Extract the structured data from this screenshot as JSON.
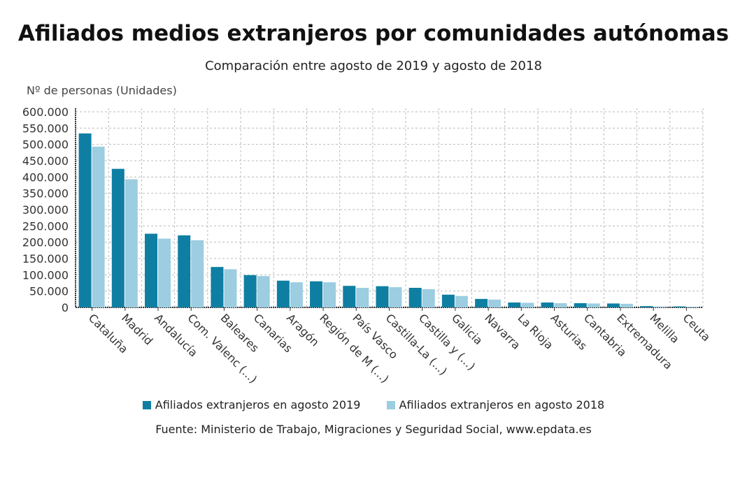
{
  "chart_data": {
    "type": "bar",
    "title": "Afiliados medios extranjeros por comunidades autónomas",
    "subtitle": "Comparación entre agosto de 2019 y agosto de 2018",
    "ylabel": "Nº de personas (Unidades)",
    "xlabel": "",
    "ylim": [
      0,
      600000
    ],
    "yticks": [
      "0",
      "50.000",
      "100.000",
      "150.000",
      "200.000",
      "250.000",
      "300.000",
      "350.000",
      "400.000",
      "450.000",
      "500.000",
      "550.000",
      "600.000"
    ],
    "grid": true,
    "legend_position": "bottom",
    "categories": [
      "Cataluña",
      "Madrid",
      "Andalucía",
      "Com. Valenc (...)",
      "Baleares",
      "Canarias",
      "Aragón",
      "Región de M (...)",
      "País Vasco",
      "Castilla-La (...)",
      "Castilla y (...)",
      "Galicia",
      "Navarra",
      "La Rioja",
      "Asturias",
      "Cantabria",
      "Extremadura",
      "Melilla",
      "Ceuta"
    ],
    "series": [
      {
        "name": "Afiliados extranjeros en agosto 2019",
        "color": "#0e7fa3",
        "values": [
          533500,
          425000,
          226000,
          221000,
          124000,
          99000,
          82000,
          80000,
          66000,
          65000,
          60000,
          39000,
          26000,
          15000,
          15000,
          13000,
          12000,
          4000,
          3000
        ]
      },
      {
        "name": "Afiliados extranjeros en agosto 2018",
        "color": "#9ccde0",
        "values": [
          493000,
          393000,
          211000,
          206000,
          117000,
          96000,
          77000,
          77000,
          60000,
          62000,
          56000,
          35000,
          24000,
          14000,
          13000,
          12000,
          11000,
          3000,
          2000
        ]
      }
    ],
    "source": "Fuente: Ministerio de Trabajo, Migraciones y Seguridad Social, www.epdata.es"
  }
}
